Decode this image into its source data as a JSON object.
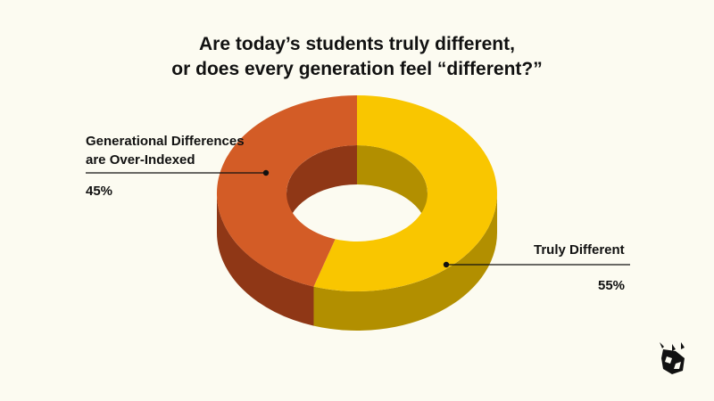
{
  "title_line1": "Are today’s students truly different,",
  "title_line2": "or does every generation feel “different?”",
  "logo_icon": "rhino-logo-icon",
  "colors": {
    "background": "#fcfbf1",
    "slice_top": [
      "#f9c600",
      "#d35c26"
    ],
    "slice_side": [
      "#b28f00",
      "#8f3716"
    ],
    "ink": "#111111"
  },
  "chart_data": {
    "type": "pie",
    "style": "3d-donut",
    "title": "Are today’s students truly different, or does every generation feel “different?”",
    "slices": [
      {
        "label_lines": [
          "Truly Different"
        ],
        "value": 55,
        "value_label": "55%"
      },
      {
        "label_lines": [
          "Generational Differences",
          "are Over-Indexed"
        ],
        "value": 45,
        "value_label": "45%"
      }
    ]
  }
}
